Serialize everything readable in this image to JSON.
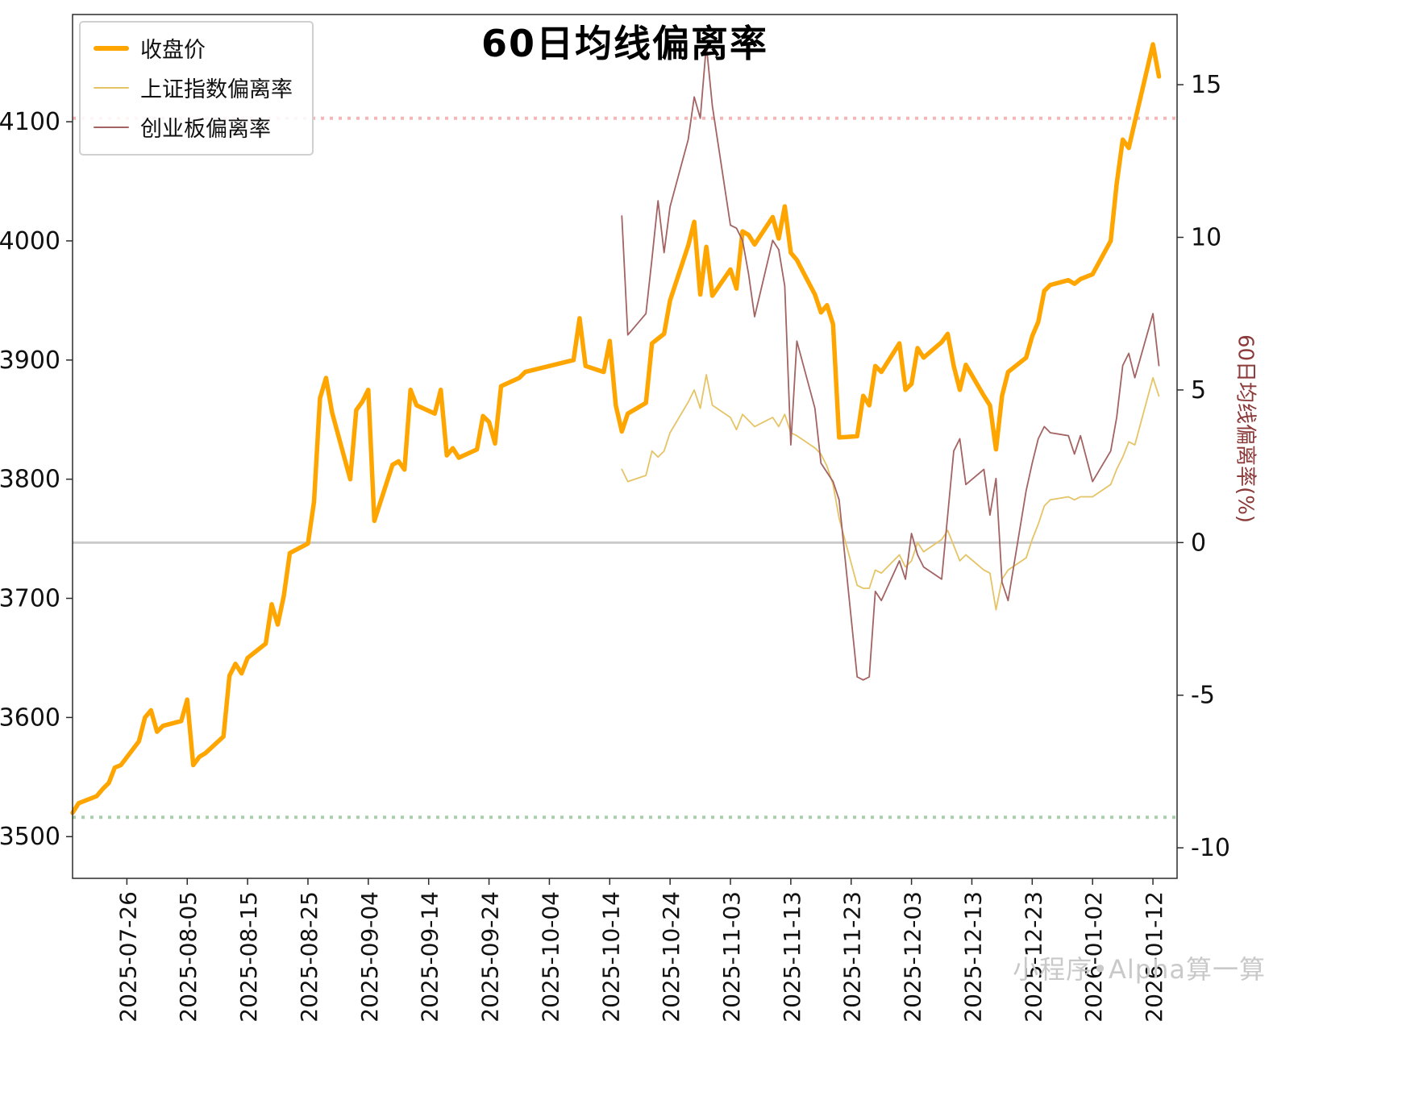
{
  "title": "60日均线偏离率",
  "right_axis_label": "60日均线偏离率(%)",
  "watermark": "小程序•Alpha算一算",
  "legend": {
    "items": [
      {
        "label": "收盘价",
        "color": "#FFA500",
        "width": 6
      },
      {
        "label": "上证指数偏离率",
        "color": "#E5C466",
        "width": 2
      },
      {
        "label": "创业板偏离率",
        "color": "#A36363",
        "width": 2
      }
    ]
  },
  "chart_data": {
    "type": "line",
    "title": "60日均线偏离率",
    "x_range": [
      "2025-07-17",
      "2026-01-16"
    ],
    "x_ticks": [
      "2025-07-26",
      "2025-08-05",
      "2025-08-15",
      "2025-08-25",
      "2025-09-04",
      "2025-09-14",
      "2025-09-24",
      "2025-10-04",
      "2025-10-14",
      "2025-10-24",
      "2025-11-03",
      "2025-11-13",
      "2025-11-23",
      "2025-12-03",
      "2025-12-13",
      "2025-12-23",
      "2026-01-02",
      "2026-01-12"
    ],
    "left_axis": {
      "name": "收盘价",
      "ticks": [
        3500,
        3600,
        3700,
        3800,
        3900,
        4000,
        4100
      ],
      "range": [
        3465,
        4190
      ]
    },
    "right_axis": {
      "name": "60日均线偏离率(%)",
      "ticks": [
        -10,
        -5,
        0,
        5,
        10,
        15
      ],
      "range": [
        -11,
        17.3
      ]
    },
    "grid": false,
    "legend_position": "upper-left",
    "reference_lines": [
      {
        "name": "upper-band",
        "axis": "right",
        "value": 13.9,
        "style": "dotted",
        "color": "#F7B6B6"
      },
      {
        "name": "lower-band",
        "axis": "right",
        "value": -9.0,
        "style": "dotted",
        "color": "#A9CFAB"
      },
      {
        "name": "zero-line",
        "axis": "right",
        "value": 0,
        "style": "solid",
        "color": "#CBCBCB"
      }
    ],
    "series": [
      {
        "name": "收盘价",
        "axis": "left",
        "color": "#FFA500",
        "width": 5.5,
        "points": [
          [
            "2025-07-17",
            3520
          ],
          [
            "2025-07-18",
            3528
          ],
          [
            "2025-07-21",
            3534
          ],
          [
            "2025-07-22",
            3540
          ],
          [
            "2025-07-23",
            3545
          ],
          [
            "2025-07-24",
            3558
          ],
          [
            "2025-07-25",
            3560
          ],
          [
            "2025-07-28",
            3580
          ],
          [
            "2025-07-29",
            3600
          ],
          [
            "2025-07-30",
            3606
          ],
          [
            "2025-07-31",
            3588
          ],
          [
            "2025-08-01",
            3593
          ],
          [
            "2025-08-04",
            3597
          ],
          [
            "2025-08-05",
            3615
          ],
          [
            "2025-08-06",
            3560
          ],
          [
            "2025-08-07",
            3567
          ],
          [
            "2025-08-08",
            3570
          ],
          [
            "2025-08-11",
            3584
          ],
          [
            "2025-08-12",
            3635
          ],
          [
            "2025-08-13",
            3645
          ],
          [
            "2025-08-14",
            3637
          ],
          [
            "2025-08-15",
            3650
          ],
          [
            "2025-08-18",
            3662
          ],
          [
            "2025-08-19",
            3695
          ],
          [
            "2025-08-20",
            3678
          ],
          [
            "2025-08-21",
            3702
          ],
          [
            "2025-08-22",
            3738
          ],
          [
            "2025-08-25",
            3746
          ],
          [
            "2025-08-26",
            3781
          ],
          [
            "2025-08-27",
            3868
          ],
          [
            "2025-08-28",
            3885
          ],
          [
            "2025-08-29",
            3856
          ],
          [
            "2025-09-01",
            3800
          ],
          [
            "2025-09-02",
            3858
          ],
          [
            "2025-09-03",
            3865
          ],
          [
            "2025-09-04",
            3875
          ],
          [
            "2025-09-05",
            3765
          ],
          [
            "2025-09-08",
            3812
          ],
          [
            "2025-09-09",
            3815
          ],
          [
            "2025-09-10",
            3808
          ],
          [
            "2025-09-11",
            3875
          ],
          [
            "2025-09-12",
            3862
          ],
          [
            "2025-09-15",
            3855
          ],
          [
            "2025-09-16",
            3875
          ],
          [
            "2025-09-17",
            3820
          ],
          [
            "2025-09-18",
            3826
          ],
          [
            "2025-09-19",
            3818
          ],
          [
            "2025-09-22",
            3825
          ],
          [
            "2025-09-23",
            3853
          ],
          [
            "2025-09-24",
            3848
          ],
          [
            "2025-09-25",
            3830
          ],
          [
            "2025-09-26",
            3878
          ],
          [
            "2025-09-29",
            3885
          ],
          [
            "2025-09-30",
            3890
          ],
          [
            "2025-10-08",
            3900
          ],
          [
            "2025-10-09",
            3935
          ],
          [
            "2025-10-10",
            3895
          ],
          [
            "2025-10-13",
            3890
          ],
          [
            "2025-10-14",
            3916
          ],
          [
            "2025-10-15",
            3862
          ],
          [
            "2025-10-16",
            3840
          ],
          [
            "2025-10-17",
            3855
          ],
          [
            "2025-10-20",
            3864
          ],
          [
            "2025-10-21",
            3914
          ],
          [
            "2025-10-22",
            3918
          ],
          [
            "2025-10-23",
            3922
          ],
          [
            "2025-10-24",
            3950
          ],
          [
            "2025-10-27",
            3996
          ],
          [
            "2025-10-28",
            4016
          ],
          [
            "2025-10-29",
            3955
          ],
          [
            "2025-10-30",
            3995
          ],
          [
            "2025-10-31",
            3954
          ],
          [
            "2025-11-03",
            3976
          ],
          [
            "2025-11-04",
            3960
          ],
          [
            "2025-11-05",
            4008
          ],
          [
            "2025-11-06",
            4005
          ],
          [
            "2025-11-07",
            3997
          ],
          [
            "2025-11-10",
            4020
          ],
          [
            "2025-11-11",
            4002
          ],
          [
            "2025-11-12",
            4029
          ],
          [
            "2025-11-13",
            3990
          ],
          [
            "2025-11-14",
            3984
          ],
          [
            "2025-11-17",
            3955
          ],
          [
            "2025-11-18",
            3940
          ],
          [
            "2025-11-19",
            3946
          ],
          [
            "2025-11-20",
            3930
          ],
          [
            "2025-11-21",
            3835
          ],
          [
            "2025-11-24",
            3836
          ],
          [
            "2025-11-25",
            3870
          ],
          [
            "2025-11-26",
            3862
          ],
          [
            "2025-11-27",
            3895
          ],
          [
            "2025-11-28",
            3890
          ],
          [
            "2025-12-01",
            3914
          ],
          [
            "2025-12-02",
            3875
          ],
          [
            "2025-12-03",
            3880
          ],
          [
            "2025-12-04",
            3910
          ],
          [
            "2025-12-05",
            3902
          ],
          [
            "2025-12-08",
            3915
          ],
          [
            "2025-12-09",
            3922
          ],
          [
            "2025-12-10",
            3895
          ],
          [
            "2025-12-11",
            3875
          ],
          [
            "2025-12-12",
            3896
          ],
          [
            "2025-12-15",
            3870
          ],
          [
            "2025-12-16",
            3862
          ],
          [
            "2025-12-17",
            3825
          ],
          [
            "2025-12-18",
            3870
          ],
          [
            "2025-12-19",
            3890
          ],
          [
            "2025-12-22",
            3902
          ],
          [
            "2025-12-23",
            3920
          ],
          [
            "2025-12-24",
            3932
          ],
          [
            "2025-12-25",
            3958
          ],
          [
            "2025-12-26",
            3963
          ],
          [
            "2025-12-29",
            3967
          ],
          [
            "2025-12-30",
            3964
          ],
          [
            "2025-12-31",
            3968
          ],
          [
            "2026-01-02",
            3972
          ],
          [
            "2026-01-05",
            4000
          ],
          [
            "2026-01-06",
            4048
          ],
          [
            "2026-01-07",
            4085
          ],
          [
            "2026-01-08",
            4078
          ],
          [
            "2026-01-09",
            4100
          ],
          [
            "2026-01-12",
            4165
          ],
          [
            "2026-01-13",
            4138
          ]
        ]
      },
      {
        "name": "上证指数偏离率",
        "axis": "right",
        "color": "#E5C466",
        "width": 1.8,
        "points": [
          [
            "2025-10-16",
            2.4
          ],
          [
            "2025-10-17",
            2.0
          ],
          [
            "2025-10-20",
            2.2
          ],
          [
            "2025-10-21",
            3.0
          ],
          [
            "2025-10-22",
            2.8
          ],
          [
            "2025-10-23",
            3.0
          ],
          [
            "2025-10-24",
            3.6
          ],
          [
            "2025-10-27",
            4.6
          ],
          [
            "2025-10-28",
            5.0
          ],
          [
            "2025-10-29",
            4.4
          ],
          [
            "2025-10-30",
            5.5
          ],
          [
            "2025-10-31",
            4.5
          ],
          [
            "2025-11-03",
            4.1
          ],
          [
            "2025-11-04",
            3.7
          ],
          [
            "2025-11-05",
            4.2
          ],
          [
            "2025-11-06",
            4.0
          ],
          [
            "2025-11-07",
            3.8
          ],
          [
            "2025-11-10",
            4.1
          ],
          [
            "2025-11-11",
            3.8
          ],
          [
            "2025-11-12",
            4.2
          ],
          [
            "2025-11-13",
            3.6
          ],
          [
            "2025-11-14",
            3.5
          ],
          [
            "2025-11-17",
            3.1
          ],
          [
            "2025-11-18",
            2.9
          ],
          [
            "2025-11-19",
            2.5
          ],
          [
            "2025-11-20",
            1.9
          ],
          [
            "2025-11-21",
            0.8
          ],
          [
            "2025-11-24",
            -1.4
          ],
          [
            "2025-11-25",
            -1.5
          ],
          [
            "2025-11-26",
            -1.5
          ],
          [
            "2025-11-27",
            -0.9
          ],
          [
            "2025-11-28",
            -1.0
          ],
          [
            "2025-12-01",
            -0.4
          ],
          [
            "2025-12-02",
            -0.8
          ],
          [
            "2025-12-03",
            -0.6
          ],
          [
            "2025-12-04",
            0.0
          ],
          [
            "2025-12-05",
            -0.3
          ],
          [
            "2025-12-08",
            0.1
          ],
          [
            "2025-12-09",
            0.4
          ],
          [
            "2025-12-10",
            -0.1
          ],
          [
            "2025-12-11",
            -0.6
          ],
          [
            "2025-12-12",
            -0.4
          ],
          [
            "2025-12-15",
            -0.9
          ],
          [
            "2025-12-16",
            -1.0
          ],
          [
            "2025-12-17",
            -2.2
          ],
          [
            "2025-12-18",
            -1.2
          ],
          [
            "2025-12-19",
            -0.9
          ],
          [
            "2025-12-22",
            -0.5
          ],
          [
            "2025-12-23",
            0.1
          ],
          [
            "2025-12-24",
            0.6
          ],
          [
            "2025-12-25",
            1.2
          ],
          [
            "2025-12-26",
            1.4
          ],
          [
            "2025-12-29",
            1.5
          ],
          [
            "2025-12-30",
            1.4
          ],
          [
            "2025-12-31",
            1.5
          ],
          [
            "2026-01-02",
            1.5
          ],
          [
            "2026-01-05",
            1.9
          ],
          [
            "2026-01-06",
            2.4
          ],
          [
            "2026-01-07",
            2.8
          ],
          [
            "2026-01-08",
            3.3
          ],
          [
            "2026-01-09",
            3.2
          ],
          [
            "2026-01-12",
            5.4
          ],
          [
            "2026-01-13",
            4.8
          ]
        ]
      },
      {
        "name": "创业板偏离率",
        "axis": "right",
        "color": "#A36363",
        "width": 1.8,
        "points": [
          [
            "2025-10-16",
            10.7
          ],
          [
            "2025-10-17",
            6.8
          ],
          [
            "2025-10-20",
            7.5
          ],
          [
            "2025-10-21",
            9.3
          ],
          [
            "2025-10-22",
            11.2
          ],
          [
            "2025-10-23",
            9.5
          ],
          [
            "2025-10-24",
            11.0
          ],
          [
            "2025-10-27",
            13.2
          ],
          [
            "2025-10-28",
            14.6
          ],
          [
            "2025-10-29",
            13.9
          ],
          [
            "2025-10-30",
            16.3
          ],
          [
            "2025-10-31",
            14.3
          ],
          [
            "2025-11-03",
            10.4
          ],
          [
            "2025-11-04",
            10.3
          ],
          [
            "2025-11-05",
            9.9
          ],
          [
            "2025-11-06",
            8.8
          ],
          [
            "2025-11-07",
            7.4
          ],
          [
            "2025-11-10",
            9.9
          ],
          [
            "2025-11-11",
            9.6
          ],
          [
            "2025-11-12",
            8.4
          ],
          [
            "2025-11-13",
            3.2
          ],
          [
            "2025-11-14",
            6.6
          ],
          [
            "2025-11-17",
            4.4
          ],
          [
            "2025-11-18",
            2.6
          ],
          [
            "2025-11-19",
            2.3
          ],
          [
            "2025-11-20",
            2.0
          ],
          [
            "2025-11-21",
            1.4
          ],
          [
            "2025-11-24",
            -4.4
          ],
          [
            "2025-11-25",
            -4.5
          ],
          [
            "2025-11-26",
            -4.4
          ],
          [
            "2025-11-27",
            -1.6
          ],
          [
            "2025-11-28",
            -1.9
          ],
          [
            "2025-12-01",
            -0.6
          ],
          [
            "2025-12-02",
            -1.2
          ],
          [
            "2025-12-03",
            0.3
          ],
          [
            "2025-12-04",
            -0.4
          ],
          [
            "2025-12-05",
            -0.8
          ],
          [
            "2025-12-08",
            -1.2
          ],
          [
            "2025-12-09",
            0.9
          ],
          [
            "2025-12-10",
            3.0
          ],
          [
            "2025-12-11",
            3.4
          ],
          [
            "2025-12-12",
            1.9
          ],
          [
            "2025-12-15",
            2.4
          ],
          [
            "2025-12-16",
            0.9
          ],
          [
            "2025-12-17",
            2.1
          ],
          [
            "2025-12-18",
            -1.3
          ],
          [
            "2025-12-19",
            -1.9
          ],
          [
            "2025-12-22",
            1.7
          ],
          [
            "2025-12-23",
            2.6
          ],
          [
            "2025-12-24",
            3.4
          ],
          [
            "2025-12-25",
            3.8
          ],
          [
            "2025-12-26",
            3.6
          ],
          [
            "2025-12-29",
            3.5
          ],
          [
            "2025-12-30",
            2.9
          ],
          [
            "2025-12-31",
            3.5
          ],
          [
            "2026-01-02",
            2.0
          ],
          [
            "2026-01-05",
            3.0
          ],
          [
            "2026-01-06",
            4.1
          ],
          [
            "2026-01-07",
            5.8
          ],
          [
            "2026-01-08",
            6.2
          ],
          [
            "2026-01-09",
            5.4
          ],
          [
            "2026-01-12",
            7.5
          ],
          [
            "2026-01-13",
            5.8
          ]
        ]
      }
    ]
  }
}
